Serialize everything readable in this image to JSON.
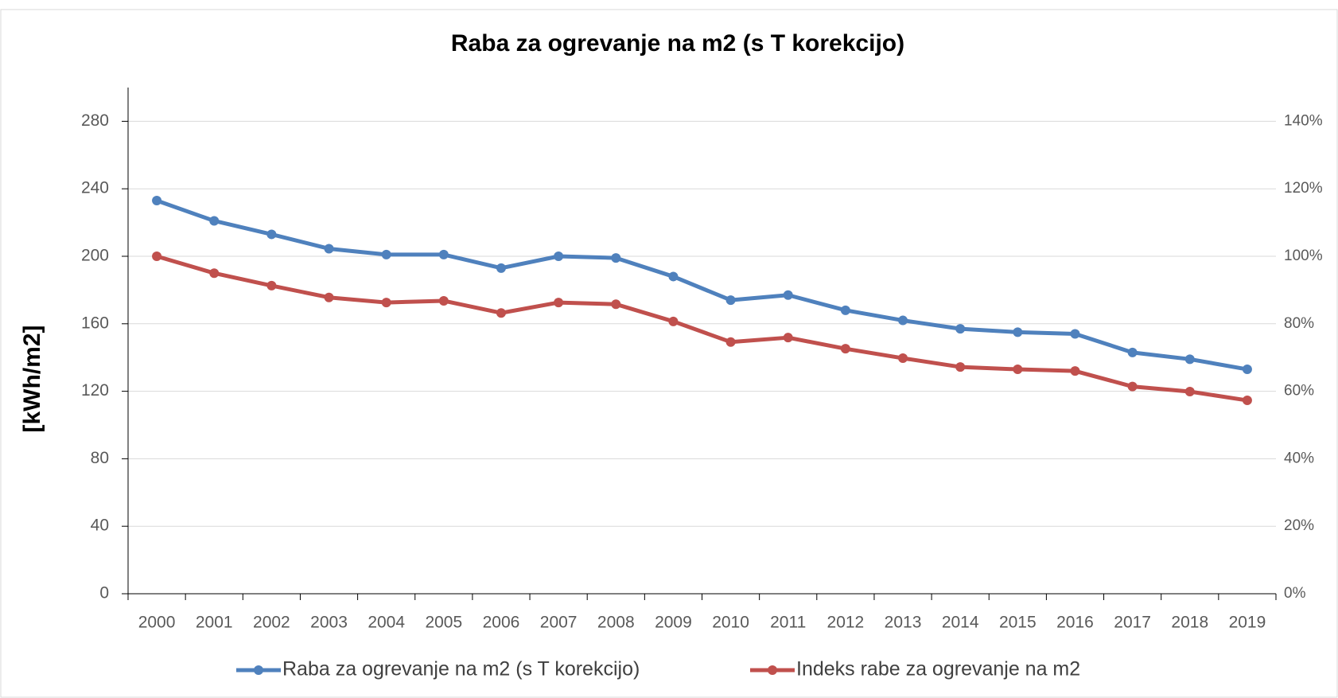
{
  "chart_data": {
    "type": "line",
    "title": "Raba za ogrevanje na m2 (s T korekcijo)",
    "y_label": "[kWh/m2]",
    "categories": [
      "2000",
      "2001",
      "2002",
      "2003",
      "2004",
      "2005",
      "2006",
      "2007",
      "2008",
      "2009",
      "2010",
      "2011",
      "2012",
      "2013",
      "2014",
      "2015",
      "2016",
      "2017",
      "2018",
      "2019"
    ],
    "series": [
      {
        "name": "Raba za ogrevanje na m2 (s T korekcijo)",
        "color": "#4f81bd",
        "values": [
          233,
          221,
          213,
          204.5,
          201,
          201,
          193,
          200,
          199,
          188,
          174,
          177,
          168,
          162,
          157,
          155,
          154,
          143,
          139,
          133
        ]
      },
      {
        "name": "Indeks rabe za ogrevanje na m2",
        "color": "#c0504d",
        "axis": "y2",
        "values": [
          100,
          95,
          91.3,
          87.8,
          86.3,
          86.8,
          83.2,
          86.3,
          85.8,
          80.7,
          74.6,
          75.9,
          72.6,
          69.8,
          67.2,
          66.5,
          66,
          61.4,
          59.9,
          57.3
        ]
      }
    ],
    "ylim": [
      0,
      300
    ],
    "yticks": [
      0,
      40,
      80,
      120,
      160,
      200,
      240,
      280
    ],
    "y2lim": [
      0,
      150
    ],
    "y2ticks": [
      {
        "value": 0,
        "label": "0%"
      },
      {
        "value": 20,
        "label": "20%"
      },
      {
        "value": 40,
        "label": "40%"
      },
      {
        "value": 60,
        "label": "60%"
      },
      {
        "value": 80,
        "label": "80%"
      },
      {
        "value": 100,
        "label": "100%"
      },
      {
        "value": 120,
        "label": "120%"
      },
      {
        "value": 140,
        "label": "140%"
      }
    ],
    "grid": true,
    "legend": "bottom"
  }
}
